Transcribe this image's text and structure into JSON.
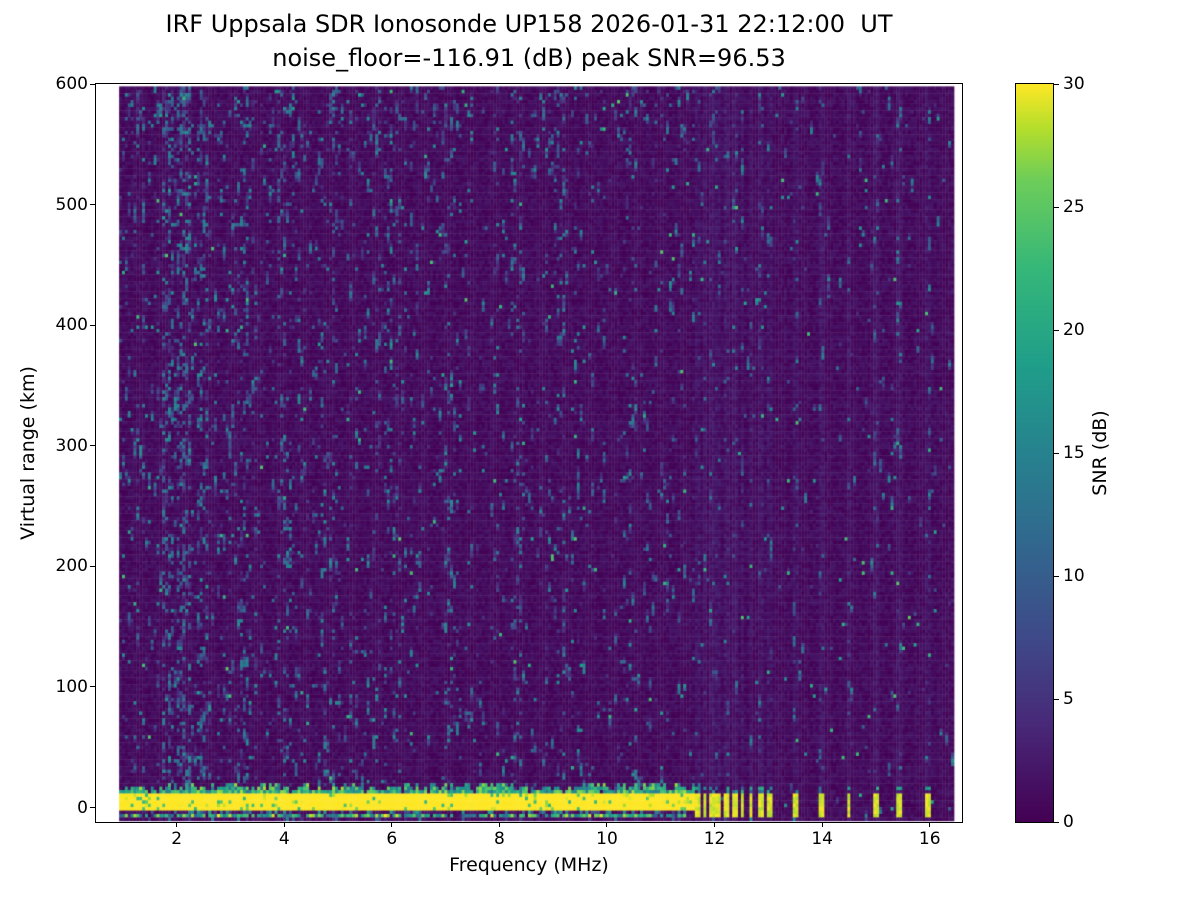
{
  "chart_data": {
    "type": "heatmap",
    "title": "IRF Uppsala SDR Ionosonde UP158 2026-01-31 22:12:00  UT",
    "subtitle": "noise_floor=-116.91 (dB) peak SNR=96.53",
    "station": "UP158",
    "timestamp_ut": "2026-01-31 22:12:00",
    "noise_floor_db": -116.91,
    "peak_snr_db": 96.53,
    "xlabel": "Frequency (MHz)",
    "ylabel": "Virtual range (km)",
    "xlim": [
      0.5,
      16.6
    ],
    "ylim": [
      -12,
      600
    ],
    "xticks": [
      2,
      4,
      6,
      8,
      10,
      12,
      14,
      16
    ],
    "yticks": [
      0,
      100,
      200,
      300,
      400,
      500,
      600
    ],
    "colorbar": {
      "label": "SNR (dB)",
      "min": 0,
      "max": 30,
      "ticks": [
        0,
        5,
        10,
        15,
        20,
        25,
        30
      ],
      "colormap": "viridis",
      "colormap_stops": [
        {
          "t": 0.0,
          "hex": "#440154"
        },
        {
          "t": 0.13,
          "hex": "#482878"
        },
        {
          "t": 0.25,
          "hex": "#3e4a89"
        },
        {
          "t": 0.38,
          "hex": "#31688e"
        },
        {
          "t": 0.5,
          "hex": "#26828e"
        },
        {
          "t": 0.62,
          "hex": "#1f9e89"
        },
        {
          "t": 0.75,
          "hex": "#35b779"
        },
        {
          "t": 0.87,
          "hex": "#6dcd59"
        },
        {
          "t": 0.94,
          "hex": "#b4de2c"
        },
        {
          "t": 1.0,
          "hex": "#fde725"
        }
      ]
    },
    "data_extent": {
      "freq_min": 0.93,
      "freq_max": 16.45,
      "range_min": -11,
      "range_max": 598
    },
    "features": {
      "ground_echo": {
        "freq_start": 0.95,
        "freq_end": 11.65,
        "core_range_km": [
          -3,
          12.5
        ],
        "snr_db": 30
      },
      "sub_echo_line_km": [
        -9.5,
        -6.5
      ],
      "discrete_marks_mhz": [
        11.7,
        11.82,
        11.95,
        12.08,
        12.22,
        12.37,
        12.52,
        12.68,
        12.85,
        13.03,
        13.5,
        14.0,
        14.5,
        15.0,
        15.45,
        15.95
      ],
      "noisy_bands": [
        {
          "mhz": [
            1.75,
            2.25
          ],
          "density": 0.26
        },
        {
          "mhz": [
            2.4,
            2.65
          ],
          "density": 0.14
        },
        {
          "mhz": [
            3.05,
            3.35
          ],
          "density": 0.13
        },
        {
          "mhz": [
            3.9,
            4.15
          ],
          "density": 0.11
        },
        {
          "mhz": [
            4.75,
            5.0
          ],
          "density": 0.11
        },
        {
          "mhz": [
            5.85,
            6.15
          ],
          "density": 0.1
        },
        {
          "mhz": [
            7.0,
            7.25
          ],
          "density": 0.09
        },
        {
          "mhz": [
            8.2,
            8.45
          ],
          "density": 0.08
        },
        {
          "mhz": [
            9.0,
            9.25
          ],
          "density": 0.09
        },
        {
          "mhz": [
            10.3,
            10.5
          ],
          "density": 0.07
        }
      ],
      "background_snr_db": [
        0,
        2.2
      ],
      "speckle_snr_db": [
        3.5,
        16.5
      ]
    },
    "rng_seed": 20260131
  }
}
